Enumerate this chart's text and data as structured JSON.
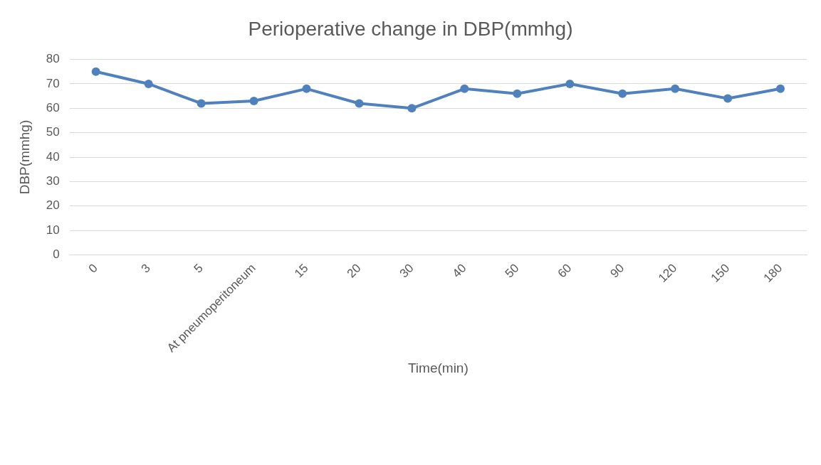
{
  "chart_data": {
    "type": "line",
    "title": "Perioperative change in DBP(mmhg)",
    "xlabel": "Time(min)",
    "ylabel": "DBP(mmhg)",
    "categories": [
      "0",
      "3",
      "5",
      "At pneumoperitoneum",
      "15",
      "20",
      "30",
      "40",
      "50",
      "60",
      "90",
      "120",
      "150",
      "180"
    ],
    "series": [
      {
        "color": "#4f81bd",
        "values": [
          75,
          70,
          62,
          63,
          68,
          62,
          60,
          68,
          66,
          70,
          66,
          68,
          64,
          68
        ]
      }
    ],
    "ylim": [
      0,
      80
    ],
    "yticks": [
      0,
      10,
      20,
      30,
      40,
      50,
      60,
      70,
      80
    ],
    "grid": "y",
    "legend": false,
    "marker": "circle",
    "line_style": "solid"
  }
}
